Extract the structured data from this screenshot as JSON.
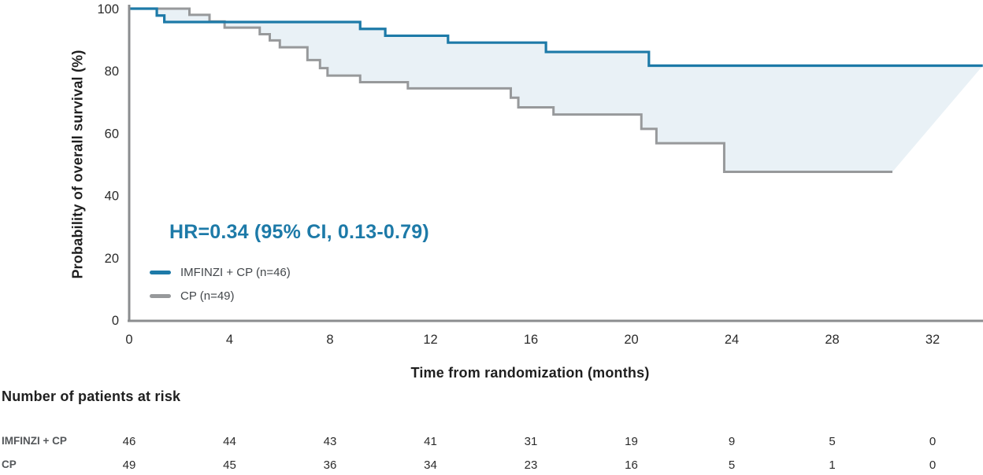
{
  "chart_data": {
    "type": "line",
    "subtype": "kaplan-meier-step",
    "xlabel": "Time from randomization (months)",
    "ylabel": "Probability of overall survival (%)",
    "xlim": [
      0,
      34
    ],
    "ylim": [
      0,
      100
    ],
    "xticks": [
      0,
      4,
      8,
      12,
      16,
      20,
      24,
      28,
      32
    ],
    "yticks": [
      100,
      80,
      60,
      40,
      20,
      0
    ],
    "grid": false,
    "legend_position": "inside-lower-left",
    "annotation": "HR=0.34 (95% CI, 0.13-0.79)",
    "band_between_curves": true,
    "series": [
      {
        "name": "IMFINZI + CP (n=46)",
        "color": "#1d7aa8",
        "end_t": 34,
        "steps": [
          [
            0,
            100
          ],
          [
            1.1,
            97.8
          ],
          [
            1.4,
            95.7
          ],
          [
            9.2,
            93.5
          ],
          [
            10.2,
            91.3
          ],
          [
            12.7,
            89.1
          ],
          [
            16.6,
            86.1
          ],
          [
            20.7,
            81.7
          ]
        ]
      },
      {
        "name": "CP (n=49)",
        "color": "#97999b",
        "end_t": 30.4,
        "steps": [
          [
            0,
            100
          ],
          [
            2.4,
            98.0
          ],
          [
            3.2,
            95.9
          ],
          [
            3.8,
            93.9
          ],
          [
            5.2,
            91.8
          ],
          [
            5.6,
            89.8
          ],
          [
            6.0,
            87.6
          ],
          [
            7.1,
            83.5
          ],
          [
            7.6,
            80.9
          ],
          [
            7.9,
            78.5
          ],
          [
            9.2,
            76.4
          ],
          [
            11.1,
            74.4
          ],
          [
            15.2,
            71.4
          ],
          [
            15.5,
            68.3
          ],
          [
            16.9,
            66.0
          ],
          [
            20.4,
            61.4
          ],
          [
            21.0,
            56.8
          ],
          [
            23.7,
            47.6
          ]
        ]
      }
    ]
  },
  "annotation": {
    "text": "HR=0.34 (95% CI, 0.13-0.79)",
    "color": "#1d7aa8"
  },
  "legend": {
    "items": [
      {
        "label": "IMFINZI + CP (n=46)",
        "color": "#1d7aa8"
      },
      {
        "label": "CP (n=49)",
        "color": "#97999b"
      }
    ]
  },
  "axes": {
    "x_title": "Time from randomization (months)",
    "y_title": "Probability of overall survival (%)"
  },
  "at_risk": {
    "title": "Number of patients at risk",
    "time_points": [
      0,
      4,
      8,
      12,
      16,
      20,
      24,
      28,
      32
    ],
    "rows": [
      {
        "label": "IMFINZI + CP",
        "counts": [
          46,
          44,
          43,
          41,
          31,
          19,
          9,
          5,
          0
        ]
      },
      {
        "label": "CP",
        "counts": [
          49,
          45,
          36,
          34,
          23,
          16,
          5,
          1,
          0
        ]
      }
    ]
  },
  "colors": {
    "treatment_line": "#1d7aa8",
    "control_line": "#97999b",
    "band_fill": "#e9f1f6",
    "axis": "#8b8d8f",
    "tick_text": "#2b2b2b",
    "heading_text": "#1f1f1f",
    "row_label_text": "#54575a"
  }
}
